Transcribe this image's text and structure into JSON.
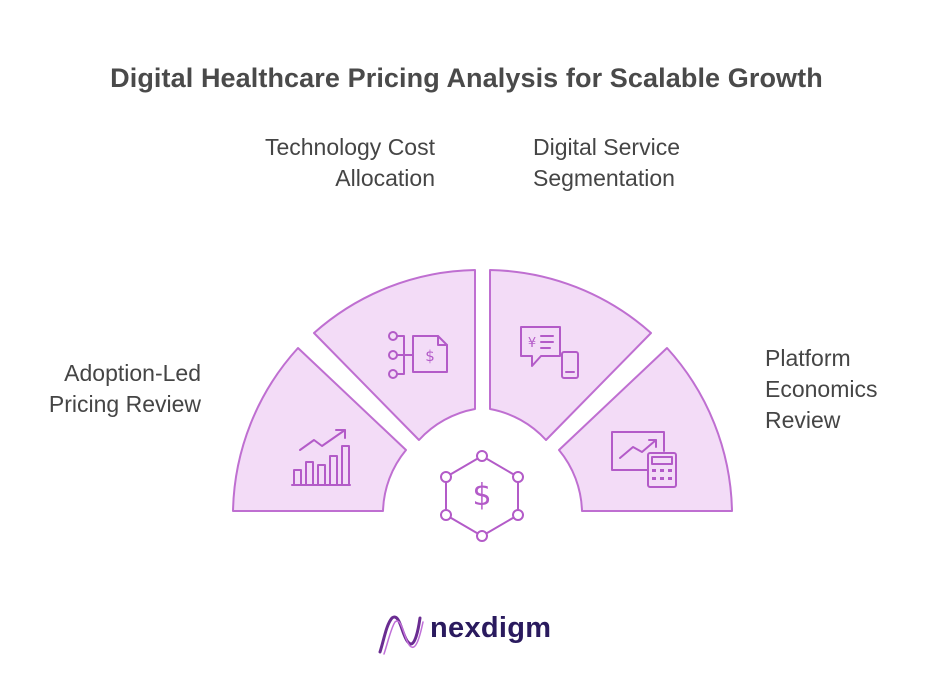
{
  "title": "Digital Healthcare Pricing Analysis for Scalable Growth",
  "segments": {
    "technology_cost": {
      "line1": "Technology Cost",
      "line2": "Allocation",
      "icon": "cost-allocation-icon"
    },
    "digital_service": {
      "line1": "Digital Service",
      "line2": "Segmentation",
      "icon": "service-segmentation-icon"
    },
    "adoption_led": {
      "line1": "Adoption-Led",
      "line2": "Pricing Review",
      "icon": "growth-chart-icon"
    },
    "platform_economics": {
      "line1": "Platform",
      "line2": "Economics",
      "line3": "Review",
      "icon": "chart-calculator-icon"
    }
  },
  "center": {
    "icon": "dollar-hexagon-icon"
  },
  "brand": {
    "name": "nexdigm"
  },
  "colors": {
    "segment_fill": "#f3dcf7",
    "segment_stroke": "#bf6fd1",
    "icon_stroke": "#b35bc8",
    "title_text": "#4a4a4a",
    "label_text": "#454545",
    "brand_text": "#2a1a5e"
  }
}
